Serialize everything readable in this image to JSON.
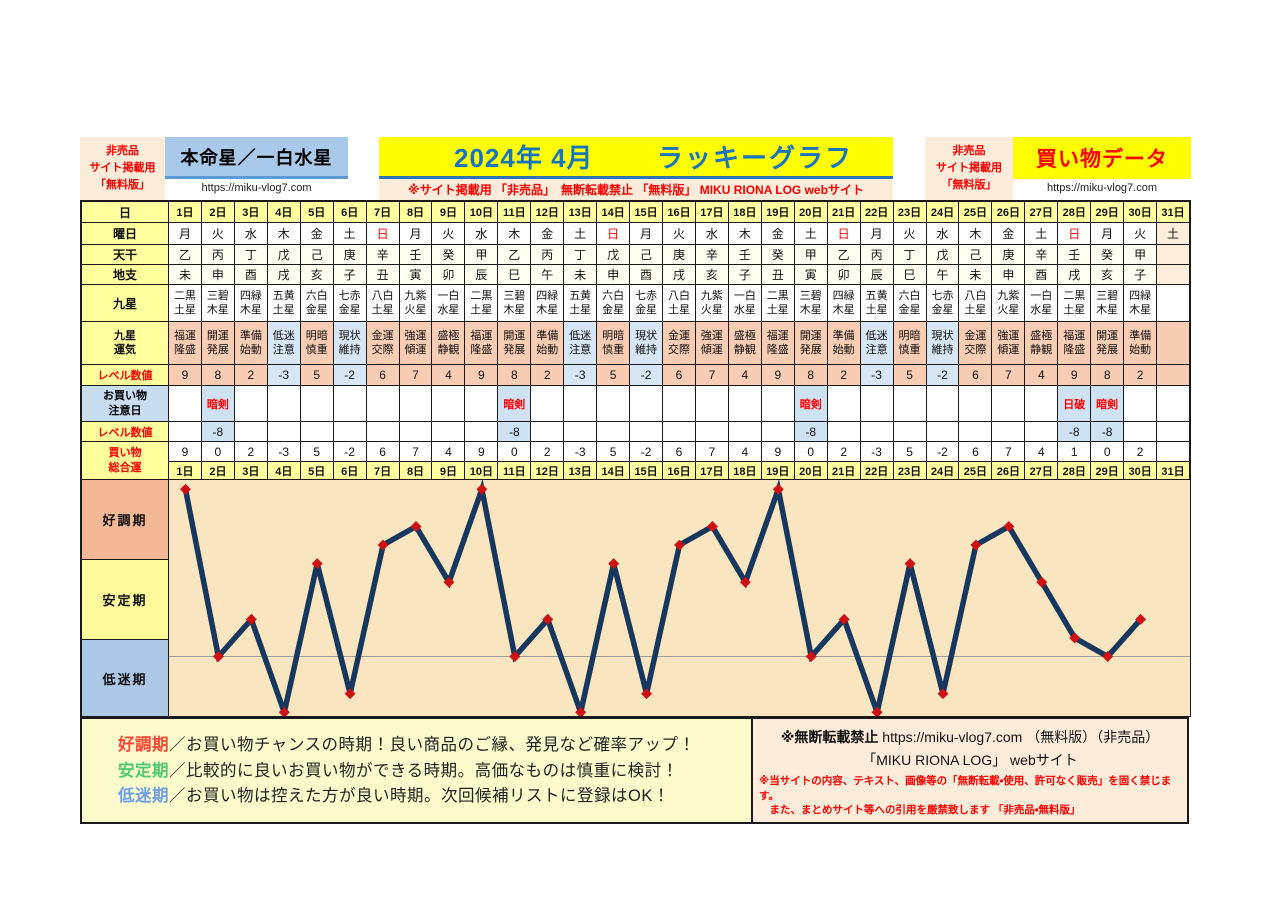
{
  "header": {
    "left_badge": {
      "lines": [
        "非売品",
        "サイト掲載用",
        "「無料版」"
      ]
    },
    "honmei": {
      "title": "本命星／一白水星",
      "url": "https://miku-vlog7.com"
    },
    "banner": {
      "year_month": "2024年 4月",
      "title": "ラッキーグラフ",
      "notice": "※サイト掲載用 「非売品」　無断転載禁止 「無料版」 MIKU RIONA LOG  webサイト"
    },
    "right_badge": {
      "lines": [
        "非売品",
        "サイト掲載用",
        "「無料版」"
      ]
    },
    "shopping": {
      "title": "買い物データ",
      "url": "https://miku-vlog7.com"
    }
  },
  "table": {
    "row_labels": {
      "day": "日",
      "weekday": "曜日",
      "tenkan": "天干",
      "chishi": "地支",
      "kyusei": "九星",
      "unki": "九星\n運気",
      "level": "レベル数値",
      "caution": "お買い物\n注意日",
      "caution_level": "レベル数値",
      "total": "買い物\n総合運"
    },
    "days": [
      "1日",
      "2日",
      "3日",
      "4日",
      "5日",
      "6日",
      "7日",
      "8日",
      "9日",
      "10日",
      "11日",
      "12日",
      "13日",
      "14日",
      "15日",
      "16日",
      "17日",
      "18日",
      "19日",
      "20日",
      "21日",
      "22日",
      "23日",
      "24日",
      "25日",
      "26日",
      "27日",
      "28日",
      "29日",
      "30日",
      "31日"
    ],
    "weekdays": [
      "月",
      "火",
      "水",
      "木",
      "金",
      "土",
      "日",
      "月",
      "火",
      "水",
      "木",
      "金",
      "土",
      "日",
      "月",
      "火",
      "水",
      "木",
      "金",
      "土",
      "日",
      "月",
      "火",
      "水",
      "木",
      "金",
      "土",
      "日",
      "月",
      "火",
      "土"
    ],
    "tenkan": [
      "乙",
      "丙",
      "丁",
      "戊",
      "己",
      "庚",
      "辛",
      "壬",
      "癸",
      "甲",
      "乙",
      "丙",
      "丁",
      "戊",
      "己",
      "庚",
      "辛",
      "壬",
      "癸",
      "甲",
      "乙",
      "丙",
      "丁",
      "戊",
      "己",
      "庚",
      "辛",
      "壬",
      "癸",
      "甲",
      ""
    ],
    "chishi": [
      "未",
      "申",
      "酉",
      "戌",
      "亥",
      "子",
      "丑",
      "寅",
      "卯",
      "辰",
      "巳",
      "午",
      "未",
      "申",
      "酉",
      "戌",
      "亥",
      "子",
      "丑",
      "寅",
      "卯",
      "辰",
      "巳",
      "午",
      "未",
      "申",
      "酉",
      "戌",
      "亥",
      "子",
      ""
    ],
    "kyusei": [
      "二黒\n土星",
      "三碧\n木星",
      "四緑\n木星",
      "五黄\n土星",
      "六白\n金星",
      "七赤\n金星",
      "八白\n土星",
      "九紫\n火星",
      "一白\n水星",
      "二黒\n土星",
      "三碧\n木星",
      "四緑\n木星",
      "五黄\n土星",
      "六白\n金星",
      "七赤\n金星",
      "八白\n土星",
      "九紫\n火星",
      "一白\n水星",
      "二黒\n土星",
      "三碧\n木星",
      "四緑\n木星",
      "五黄\n土星",
      "六白\n金星",
      "七赤\n金星",
      "八白\n土星",
      "九紫\n火星",
      "一白\n水星",
      "二黒\n土星",
      "三碧\n木星",
      "四緑\n木星",
      ""
    ],
    "unki": [
      "福運\n隆盛",
      "開運\n発展",
      "準備\n始動",
      "低迷\n注意",
      "明暗\n慎重",
      "現状\n維持",
      "金運\n交際",
      "強運\n傾運",
      "盛極\n静観",
      "福運\n隆盛",
      "開運\n発展",
      "準備\n始動",
      "低迷\n注意",
      "明暗\n慎重",
      "現状\n維持",
      "金運\n交際",
      "強運\n傾運",
      "盛極\n静観",
      "福運\n隆盛",
      "開運\n発展",
      "準備\n始動",
      "低迷\n注意",
      "明暗\n慎重",
      "現状\n維持",
      "金運\n交際",
      "強運\n傾運",
      "盛極\n静観",
      "福運\n隆盛",
      "開運\n発展",
      "準備\n始動",
      ""
    ],
    "levels": [
      9,
      8,
      2,
      -3,
      5,
      -2,
      6,
      7,
      4,
      9,
      8,
      2,
      -3,
      5,
      -2,
      6,
      7,
      4,
      9,
      8,
      2,
      -3,
      5,
      -2,
      6,
      7,
      4,
      9,
      8,
      2,
      ""
    ],
    "caution": [
      "",
      "暗剣",
      "",
      "",
      "",
      "",
      "",
      "",
      "",
      "",
      "暗剣",
      "",
      "",
      "",
      "",
      "",
      "",
      "",
      "",
      "暗剣",
      "",
      "",
      "",
      "",
      "",
      "",
      "",
      "日破",
      "暗剣",
      "",
      ""
    ],
    "caution_levels": [
      "",
      "-8",
      "",
      "",
      "",
      "",
      "",
      "",
      "",
      "",
      "-8",
      "",
      "",
      "",
      "",
      "",
      "",
      "",
      "",
      "-8",
      "",
      "",
      "",
      "",
      "",
      "",
      "",
      "-8",
      "-8",
      "",
      ""
    ],
    "totals": [
      9,
      0,
      2,
      -3,
      5,
      -2,
      6,
      7,
      4,
      9,
      0,
      2,
      -3,
      5,
      -2,
      6,
      7,
      4,
      9,
      0,
      2,
      -3,
      5,
      -2,
      6,
      7,
      4,
      1,
      0,
      2,
      ""
    ]
  },
  "chart_data": {
    "type": "line",
    "series_name": "買い物総合運",
    "categories": [
      "1日",
      "2日",
      "3日",
      "4日",
      "5日",
      "6日",
      "7日",
      "8日",
      "9日",
      "10日",
      "11日",
      "12日",
      "13日",
      "14日",
      "15日",
      "16日",
      "17日",
      "18日",
      "19日",
      "20日",
      "21日",
      "22日",
      "23日",
      "24日",
      "25日",
      "26日",
      "27日",
      "28日",
      "29日",
      "30日",
      "31日"
    ],
    "values": [
      9,
      0,
      2,
      -3,
      5,
      -2,
      6,
      7,
      4,
      9,
      0,
      2,
      -3,
      5,
      -2,
      6,
      7,
      4,
      9,
      0,
      2,
      -3,
      5,
      -2,
      6,
      7,
      4,
      1,
      0,
      2,
      null
    ],
    "ylim": [
      -3.2,
      9.5
    ],
    "zero_line": 0,
    "grid": "zero-line-only",
    "legend_position": "none",
    "zones": [
      {
        "label": "好調期",
        "color": "#f4b894",
        "range": [
          5.2,
          9.5
        ]
      },
      {
        "label": "安定期",
        "color": "#fdfa9b",
        "range": [
          0.4,
          5.2
        ]
      },
      {
        "label": "低迷期",
        "color": "#aec8e8",
        "range": [
          -3.2,
          0.4
        ]
      }
    ],
    "line_color": "#17375e",
    "marker_color": "#cc1212",
    "marker_shape": "diamond",
    "plot_bg": "#fae5c1",
    "zero_line_color": "#9e9e9e"
  },
  "legend": {
    "items": [
      {
        "term": "好調期",
        "color": "#ff4733",
        "desc": "／お買い物チャンスの時期！良い商品のご縁、発見など確率アップ！"
      },
      {
        "term": "安定期",
        "color": "#4ec974",
        "desc": "／比較的に良いお買い物ができる時期。高価なものは慎重に検討！"
      },
      {
        "term": "低迷期",
        "color": "#6f9fe8",
        "desc": "／お買い物は控えた方が良い時期。次回候補リストに登録はOK！"
      }
    ]
  },
  "footer": {
    "notice_label": "※無断転載禁止",
    "notice_rest": "  https://miku-vlog7.com （無料版）（非売品）",
    "site_line": "「MIKU RIONA LOG」 webサイト",
    "warn1": "※当サイトの内容、テキスト、画像等の「無断転載・使用、許可なく販売」を固く禁じます。",
    "warn2": "　また、まとめサイト等への引用を厳禁致します 「非売品・無料版」"
  },
  "colors": {
    "accent_yellow": "#ffff00",
    "title_blue": "#1874bc",
    "honmei_blue": "#a9c9ea",
    "header_cell_yellow": "#ffff9e",
    "salmon_cell": "#f8cdb4",
    "blue_cell": "#d6e6f4",
    "caution_blue": "#cfe2f3",
    "red": "#ff0000",
    "line_navy": "#17375e",
    "marker_red": "#cc1212"
  }
}
